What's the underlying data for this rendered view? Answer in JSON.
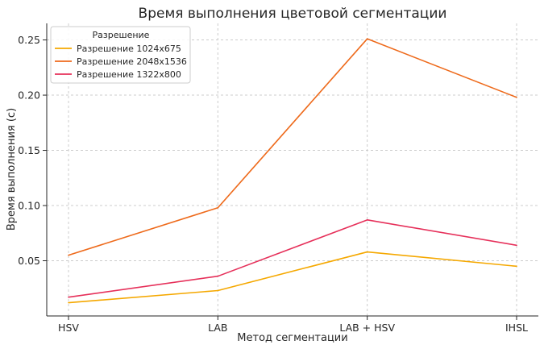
{
  "chart_data": {
    "type": "line",
    "title": "Время выполнения цветовой сегментации",
    "xlabel": "Метод сегментации",
    "ylabel": "Время выполнения (с)",
    "categories": [
      "HSV",
      "LAB",
      "LAB + HSV",
      "IHSL"
    ],
    "ylim": [
      0.0,
      0.265
    ],
    "yticks": [
      0.05,
      0.1,
      0.15,
      0.2,
      0.25
    ],
    "ytick_labels": [
      "0.05",
      "0.10",
      "0.15",
      "0.20",
      "0.25"
    ],
    "grid": true,
    "legend": {
      "title": "Разрешение",
      "placement": "top-left"
    },
    "series": [
      {
        "name": "Разрешение 1024x675",
        "color": "#f5a800",
        "values": [
          0.012,
          0.023,
          0.058,
          0.045
        ]
      },
      {
        "name": "Разрешение 2048x1536",
        "color": "#ee6a1b",
        "values": [
          0.055,
          0.098,
          0.251,
          0.198
        ]
      },
      {
        "name": "Разрешение 1322x800",
        "color": "#e6305a",
        "values": [
          0.017,
          0.036,
          0.087,
          0.064
        ]
      }
    ]
  }
}
